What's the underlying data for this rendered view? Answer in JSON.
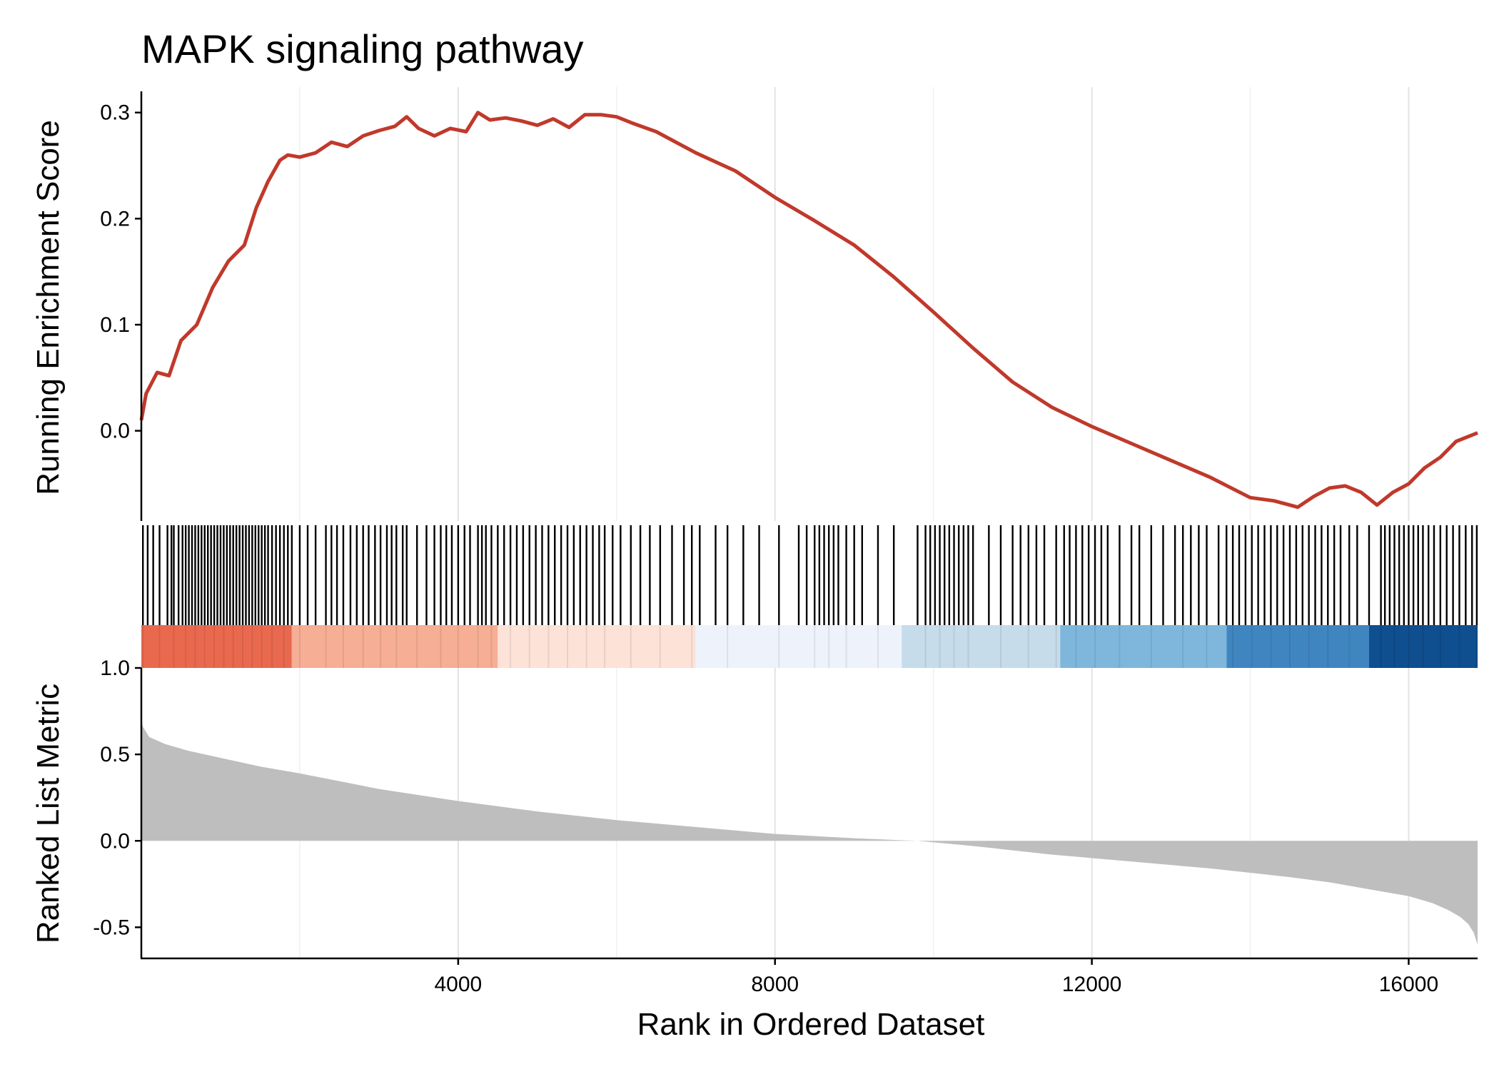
{
  "chart_data": {
    "type": "line",
    "title": "MAPK signaling pathway",
    "xlabel": "Rank in Ordered Dataset",
    "xlim": [
      0,
      16870
    ],
    "x_ticks": [
      {
        "value": 4000,
        "label": "4000"
      },
      {
        "value": 8000,
        "label": "8000"
      },
      {
        "value": 12000,
        "label": "12000"
      },
      {
        "value": 16000,
        "label": "16000"
      }
    ],
    "grid": true,
    "panels": {
      "enrichment": {
        "ylabel": "Running Enrichment Score",
        "ylim": [
          -0.085,
          0.32
        ],
        "line_color": "#C0392B",
        "y_ticks": [
          {
            "value": 0.3,
            "label": "0.3"
          },
          {
            "value": 0.2,
            "label": "0.2"
          },
          {
            "value": 0.1,
            "label": "0.1"
          },
          {
            "value": 0.0,
            "label": "0.0"
          }
        ],
        "series": [
          {
            "x": [
              0,
              60,
              200,
              350,
              500,
              700,
              900,
              1100,
              1300,
              1450,
              1600,
              1750,
              1850,
              2000,
              2200,
              2400,
              2600,
              2800,
              3000,
              3200,
              3350,
              3500,
              3700,
              3900,
              4100,
              4250,
              4400,
              4600,
              4800,
              5000,
              5200,
              5400,
              5600,
              5800,
              6000,
              6200,
              6500,
              7000,
              7500,
              8000,
              8500,
              9000,
              9500,
              10000,
              10500,
              11000,
              11500,
              12000,
              12500,
              13000,
              13500,
              14000,
              14300,
              14600,
              14800,
              15000,
              15200,
              15400,
              15600,
              15800,
              16000,
              16200,
              16400,
              16600,
              16870
            ],
            "y": [
              0.01,
              0.035,
              0.055,
              0.052,
              0.085,
              0.1,
              0.135,
              0.16,
              0.175,
              0.21,
              0.235,
              0.255,
              0.26,
              0.258,
              0.262,
              0.272,
              0.268,
              0.278,
              0.283,
              0.287,
              0.296,
              0.285,
              0.278,
              0.285,
              0.282,
              0.3,
              0.293,
              0.295,
              0.292,
              0.288,
              0.294,
              0.286,
              0.298,
              0.298,
              0.296,
              0.29,
              0.282,
              0.262,
              0.245,
              0.22,
              0.198,
              0.175,
              0.145,
              0.112,
              0.078,
              0.046,
              0.022,
              0.004,
              -0.012,
              -0.028,
              -0.044,
              -0.063,
              -0.066,
              -0.072,
              -0.062,
              -0.054,
              -0.052,
              -0.058,
              -0.07,
              -0.058,
              -0.05,
              -0.035,
              -0.025,
              -0.01,
              -0.002
            ]
          }
        ]
      },
      "hits": {
        "gene_ranks": [
          20,
          80,
          150,
          230,
          330,
          380,
          410,
          470,
          520,
          560,
          600,
          640,
          680,
          720,
          760,
          800,
          840,
          880,
          920,
          960,
          1000,
          1040,
          1080,
          1120,
          1160,
          1200,
          1240,
          1280,
          1320,
          1360,
          1400,
          1440,
          1480,
          1520,
          1560,
          1600,
          1650,
          1700,
          1750,
          1800,
          1850,
          1900,
          2000,
          2100,
          2200,
          2330,
          2400,
          2470,
          2550,
          2640,
          2720,
          2800,
          2870,
          2950,
          3020,
          3100,
          3160,
          3220,
          3300,
          3350,
          3480,
          3600,
          3700,
          3780,
          3850,
          3920,
          4000,
          4080,
          4150,
          4250,
          4300,
          4350,
          4420,
          4500,
          4580,
          4660,
          4740,
          4820,
          4900,
          4980,
          5060,
          5140,
          5220,
          5300,
          5380,
          5460,
          5540,
          5620,
          5700,
          5780,
          5850,
          5950,
          6050,
          6180,
          6300,
          6420,
          6550,
          6700,
          6850,
          6950,
          7050,
          7250,
          7400,
          7600,
          7800,
          8050,
          8300,
          8400,
          8500,
          8560,
          8620,
          8680,
          8740,
          8800,
          8900,
          9000,
          9100,
          9300,
          9500,
          9800,
          9900,
          9960,
          10020,
          10080,
          10140,
          10200,
          10260,
          10320,
          10380,
          10440,
          10500,
          10700,
          10850,
          11000,
          11100,
          11200,
          11300,
          11400,
          11550,
          11650,
          11720,
          11800,
          11880,
          11960,
          12040,
          12120,
          12200,
          12350,
          12500,
          12600,
          12750,
          12900,
          13050,
          13150,
          13250,
          13350,
          13450,
          13600,
          13700,
          13780,
          13860,
          13940,
          14020,
          14100,
          14180,
          14260,
          14340,
          14420,
          14500,
          14580,
          14660,
          14740,
          14820,
          14900,
          14980,
          15060,
          15140,
          15250,
          15350,
          15500,
          15650,
          15700,
          15760,
          15820,
          15880,
          15940,
          16000,
          16060,
          16120,
          16180,
          16250,
          16320,
          16400,
          16480,
          16560,
          16640,
          16720,
          16800,
          16860
        ]
      },
      "color_bands": [
        {
          "x0": 0,
          "x1": 1900,
          "color": "#E9694F"
        },
        {
          "x0": 1900,
          "x1": 4500,
          "color": "#F6AE95"
        },
        {
          "x0": 4500,
          "x1": 7000,
          "color": "#FCE2D7"
        },
        {
          "x0": 7000,
          "x1": 9600,
          "color": "#EEF2FA"
        },
        {
          "x0": 9600,
          "x1": 11600,
          "color": "#C6DCEA"
        },
        {
          "x0": 11600,
          "x1": 13700,
          "color": "#7FB7DC"
        },
        {
          "x0": 13700,
          "x1": 15500,
          "color": "#3F86C0"
        },
        {
          "x0": 15500,
          "x1": 16870,
          "color": "#0F4E8F"
        }
      ],
      "ranked": {
        "ylabel": "Ranked List Metric",
        "ylim": [
          -0.68,
          1.0
        ],
        "fill_color": "#BEBEBE",
        "y_ticks": [
          {
            "value": 1.0,
            "label": "1.0"
          },
          {
            "value": 0.5,
            "label": "0.5"
          },
          {
            "value": 0.0,
            "label": "0.0"
          },
          {
            "value": -0.5,
            "label": "-0.5"
          }
        ],
        "series": [
          {
            "x": [
              0,
              20,
              100,
              300,
              600,
              1000,
              1500,
              2000,
              3000,
              4000,
              5000,
              6000,
              7000,
              8000,
              9000,
              9800,
              10500,
              11500,
              12500,
              13500,
              14500,
              15000,
              15500,
              16000,
              16300,
              16500,
              16650,
              16750,
              16820,
              16870
            ],
            "y": [
              0.7,
              0.66,
              0.6,
              0.56,
              0.52,
              0.48,
              0.43,
              0.39,
              0.3,
              0.23,
              0.17,
              0.12,
              0.08,
              0.04,
              0.015,
              0.0,
              -0.03,
              -0.08,
              -0.12,
              -0.16,
              -0.21,
              -0.24,
              -0.28,
              -0.32,
              -0.36,
              -0.4,
              -0.44,
              -0.48,
              -0.53,
              -0.6
            ]
          }
        ]
      }
    }
  }
}
